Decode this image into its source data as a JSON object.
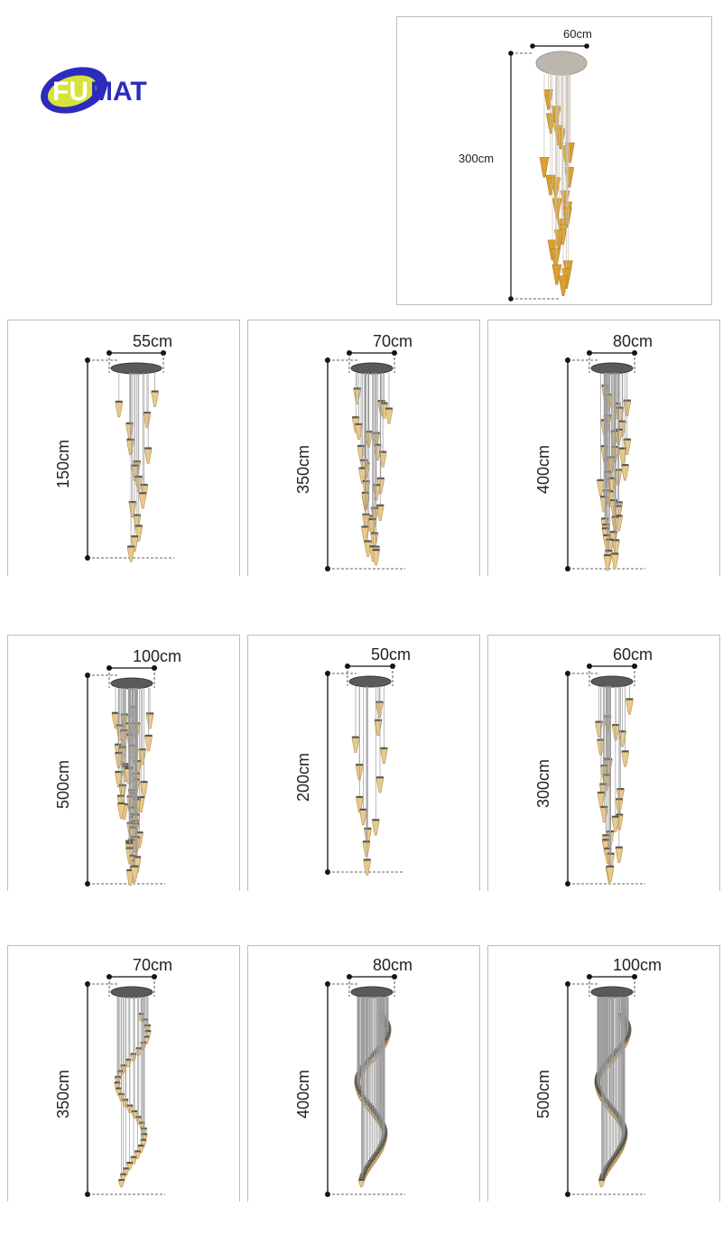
{
  "brand": {
    "logo_text": "FUMAT"
  },
  "hero": {
    "width": "60cm",
    "height": "300cm",
    "finish": "gold"
  },
  "variants": [
    {
      "width": "55cm",
      "height": "150cm",
      "style": "cone"
    },
    {
      "width": "70cm",
      "height": "350cm",
      "style": "cone"
    },
    {
      "width": "80cm",
      "height": "400cm",
      "style": "cone"
    },
    {
      "width": "100cm",
      "height": "500cm",
      "style": "cone"
    },
    {
      "width": "50cm",
      "height": "200cm",
      "style": "cone"
    },
    {
      "width": "60cm",
      "height": "300cm",
      "style": "cone"
    },
    {
      "width": "70cm",
      "height": "350cm",
      "style": "spiral"
    },
    {
      "width": "80cm",
      "height": "400cm",
      "style": "spiral"
    },
    {
      "width": "100cm",
      "height": "500cm",
      "style": "spiral"
    }
  ],
  "colors": {
    "panel_border": "#bdbdbd",
    "gold": "#d9a032",
    "crystal": "#e7c98d",
    "canopy": "#5a5a5a",
    "logo_blue": "#2c2bbd",
    "logo_yellow": "#d7e33a"
  }
}
